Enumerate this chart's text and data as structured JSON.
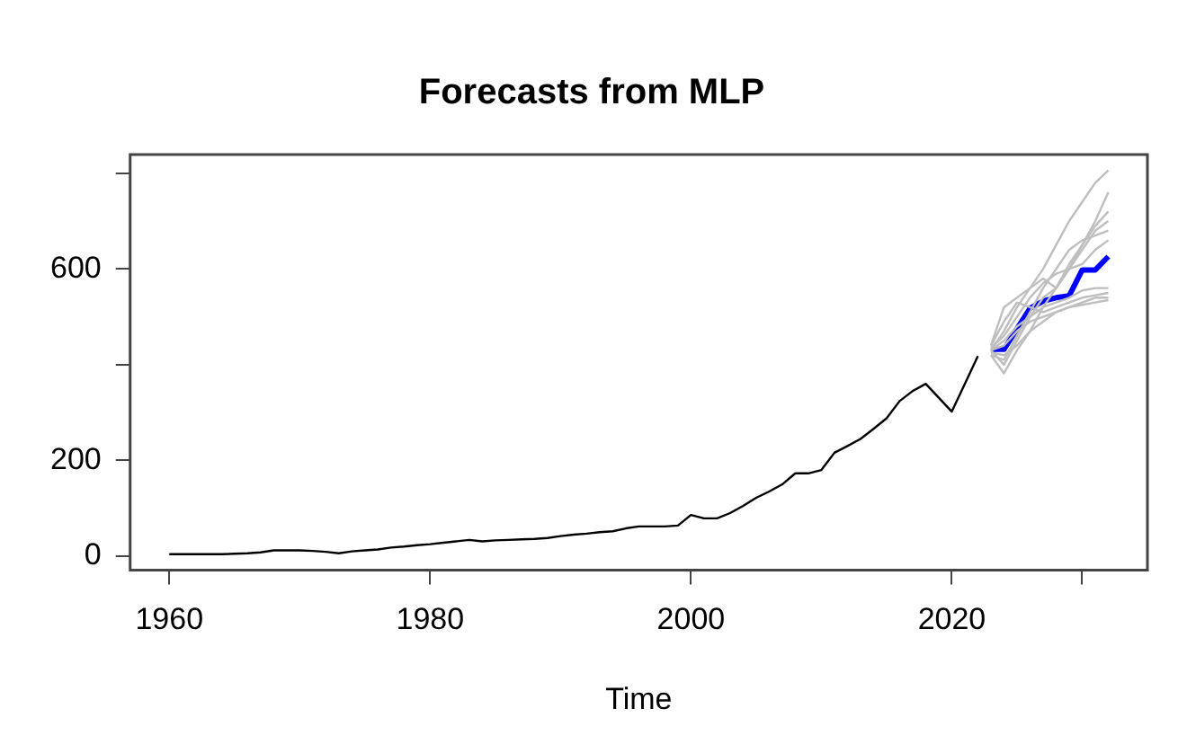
{
  "chart_data": {
    "type": "line",
    "title": "Forecasts from MLP",
    "xlabel": "Time",
    "xlim": [
      1957,
      2035
    ],
    "xticks": [
      1960,
      1980,
      2000,
      2020,
      {
        "value": 2030,
        "label": null
      }
    ],
    "ylim": [
      -29,
      839
    ],
    "yticks": [
      0,
      200,
      {
        "value": 400,
        "label": null
      },
      600,
      {
        "value": 800,
        "label": null
      }
    ],
    "grid": false,
    "legend": false,
    "marker": "none",
    "line_style": "solid",
    "series": [
      {
        "color": "#000000",
        "x": [
          1960,
          1961,
          1962,
          1963,
          1964,
          1965,
          1966,
          1967,
          1968,
          1969,
          1970,
          1971,
          1972,
          1973,
          1974,
          1975,
          1976,
          1977,
          1978,
          1979,
          1980,
          1981,
          1982,
          1983,
          1984,
          1985,
          1986,
          1987,
          1988,
          1989,
          1990,
          1991,
          1992,
          1993,
          1994,
          1995,
          1996,
          1997,
          1998,
          1999,
          2000,
          2001,
          2002,
          2003,
          2004,
          2005,
          2006,
          2007,
          2008,
          2009,
          2010,
          2011,
          2012,
          2013,
          2014,
          2015,
          2016,
          2017,
          2018,
          2019,
          2020,
          2021,
          2022
        ],
        "values": [
          4,
          4,
          4,
          4,
          4,
          5,
          6,
          8,
          12,
          12,
          12,
          11,
          9,
          6,
          10,
          12,
          14,
          18,
          20,
          23,
          25,
          28,
          31,
          34,
          31,
          33,
          34,
          35,
          36,
          38,
          42,
          45,
          47,
          50,
          52,
          58,
          62,
          62,
          62,
          64,
          86,
          79,
          79,
          90,
          105,
          122,
          135,
          150,
          173,
          173,
          180,
          216,
          230,
          245,
          266,
          288,
          324,
          345,
          360,
          331,
          302,
          360,
          418
        ]
      },
      {
        "color": "#bebebe",
        "x": [
          2023,
          2024,
          2025,
          2026,
          2027,
          2028,
          2029,
          2030,
          2031,
          2032
        ],
        "values": [
          430,
          470,
          520,
          560,
          600,
          650,
          700,
          740,
          780,
          806
        ]
      },
      {
        "color": "#bebebe",
        "x": [
          2023,
          2024,
          2025,
          2026,
          2027,
          2028,
          2029,
          2030,
          2031,
          2032
        ],
        "values": [
          430,
          400,
          450,
          500,
          540,
          560,
          600,
          650,
          700,
          760
        ]
      },
      {
        "color": "#bebebe",
        "x": [
          2023,
          2024,
          2025,
          2026,
          2027,
          2028,
          2029,
          2030,
          2031,
          2032
        ],
        "values": [
          440,
          520,
          540,
          560,
          580,
          560,
          600,
          640,
          680,
          700
        ]
      },
      {
        "color": "#bebebe",
        "x": [
          2023,
          2024,
          2025,
          2026,
          2027,
          2028,
          2029,
          2030,
          2031,
          2032
        ],
        "values": [
          420,
          382,
          430,
          470,
          490,
          510,
          520,
          530,
          540,
          540
        ]
      },
      {
        "color": "#bebebe",
        "x": [
          2023,
          2024,
          2025,
          2026,
          2027,
          2028,
          2029,
          2030,
          2031,
          2032
        ],
        "values": [
          430,
          450,
          480,
          500,
          520,
          530,
          540,
          555,
          560,
          560
        ]
      },
      {
        "color": "#bebebe",
        "x": [
          2023,
          2024,
          2025,
          2026,
          2027,
          2028,
          2029,
          2030,
          2031,
          2032
        ],
        "values": [
          440,
          490,
          530,
          520,
          510,
          520,
          530,
          540,
          545,
          550
        ]
      },
      {
        "color": "#bebebe",
        "x": [
          2023,
          2024,
          2025,
          2026,
          2027,
          2028,
          2029,
          2030,
          2031,
          2032
        ],
        "values": [
          425,
          420,
          440,
          470,
          520,
          560,
          610,
          650,
          690,
          720
        ]
      },
      {
        "color": "#bebebe",
        "x": [
          2023,
          2024,
          2025,
          2026,
          2027,
          2028,
          2029,
          2030,
          2031,
          2032
        ],
        "values": [
          435,
          460,
          500,
          540,
          570,
          590,
          600,
          610,
          640,
          660
        ]
      },
      {
        "color": "#bebebe",
        "x": [
          2023,
          2024,
          2025,
          2026,
          2027,
          2028,
          2029,
          2030,
          2031,
          2032
        ],
        "values": [
          430,
          440,
          470,
          490,
          500,
          510,
          520,
          525,
          530,
          535
        ]
      },
      {
        "color": "#bebebe",
        "x": [
          2023,
          2024,
          2025,
          2026,
          2027,
          2028,
          2029,
          2030,
          2031,
          2032
        ],
        "values": [
          420,
          410,
          460,
          510,
          560,
          600,
          640,
          660,
          670,
          680
        ]
      },
      {
        "color": "#0000ff",
        "x": [
          2023,
          2024,
          2025,
          2026,
          2027,
          2028,
          2029,
          2030,
          2031,
          2032
        ],
        "values": [
          432,
          432,
          475,
          518,
          533,
          540,
          544,
          598,
          598,
          626
        ]
      }
    ]
  }
}
